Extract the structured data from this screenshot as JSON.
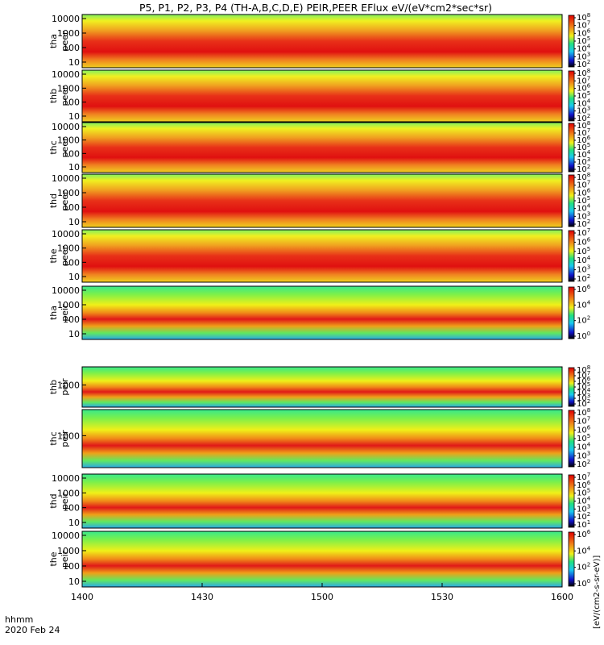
{
  "title": "P5, P1, P2, P3, P4 (TH-A,B,C,D,E) PEIR,PEER EFlux eV/(eV*cm2*sec*sr)",
  "time_axis": {
    "ticks": [
      "1400",
      "1430",
      "1500",
      "1530",
      "1600"
    ],
    "label_line1": "hhmm",
    "label_line2": "2020 Feb 24"
  },
  "colorbar_unit_label": "[eV/(cm2-s-sr-eV)]",
  "chart_data": [
    {
      "type": "heatmap",
      "panel": "thaeer",
      "ylabel": [
        "tha",
        "peer"
      ],
      "yscale": "log",
      "ytick_labels": [
        "10",
        "100",
        "1000",
        "10000"
      ],
      "cbar_tick_labels": [
        "10^2",
        "10^3",
        "10^4",
        "10^5",
        "10^6",
        "10^7",
        "10^8"
      ],
      "xrange": [
        "1400",
        "1600"
      ]
    },
    {
      "type": "heatmap",
      "panel": "thbeer",
      "ylabel": [
        "thb",
        "peer"
      ],
      "yscale": "log",
      "ytick_labels": [
        "10",
        "100",
        "1000",
        "10000"
      ],
      "cbar_tick_labels": [
        "10^2",
        "10^3",
        "10^4",
        "10^5",
        "10^6",
        "10^7",
        "10^8"
      ],
      "xrange": [
        "1400",
        "1600"
      ]
    },
    {
      "type": "heatmap",
      "panel": "thceer",
      "ylabel": [
        "thc",
        "peer"
      ],
      "yscale": "log",
      "ytick_labels": [
        "10",
        "100",
        "1000",
        "10000"
      ],
      "cbar_tick_labels": [
        "10^2",
        "10^3",
        "10^4",
        "10^5",
        "10^6",
        "10^7",
        "10^8"
      ],
      "xrange": [
        "1400",
        "1600"
      ]
    },
    {
      "type": "heatmap",
      "panel": "thdeer",
      "ylabel": [
        "thd",
        "peer"
      ],
      "yscale": "log",
      "ytick_labels": [
        "10",
        "100",
        "1000",
        "10000"
      ],
      "cbar_tick_labels": [
        "10^2",
        "10^3",
        "10^4",
        "10^5",
        "10^6",
        "10^7",
        "10^8"
      ],
      "xrange": [
        "1400",
        "1600"
      ]
    },
    {
      "type": "heatmap",
      "panel": "theeer",
      "ylabel": [
        "the",
        "peer"
      ],
      "yscale": "log",
      "ytick_labels": [
        "10",
        "100",
        "1000",
        "10000"
      ],
      "cbar_tick_labels": [
        "10^2",
        "10^3",
        "10^4",
        "10^5",
        "10^6",
        "10^7"
      ],
      "xrange": [
        "1400",
        "1600"
      ]
    },
    {
      "type": "heatmap",
      "panel": "thaeir",
      "ylabel": [
        "tha",
        "peir"
      ],
      "yscale": "log",
      "ytick_labels": [
        "10",
        "100",
        "1000",
        "10000"
      ],
      "cbar_tick_labels": [
        "10^0",
        "10^2",
        "10^4",
        "10^6"
      ],
      "xrange": [
        "1400",
        "1600"
      ]
    },
    {
      "type": "heatmap",
      "panel": "thbeir",
      "ylabel": [
        "thb",
        "peir"
      ],
      "yscale": "log",
      "ytick_labels": [
        "1000"
      ],
      "cbar_tick_labels": [
        "10^2",
        "10^3",
        "10^4",
        "10^5",
        "10^6",
        "10^7",
        "10^8"
      ],
      "xrange": [
        "1400",
        "1600"
      ]
    },
    {
      "type": "heatmap",
      "panel": "thceir",
      "ylabel": [
        "thc",
        "peir"
      ],
      "yscale": "log",
      "ytick_labels": [
        "1000"
      ],
      "cbar_tick_labels": [
        "10^2",
        "10^3",
        "10^4",
        "10^5",
        "10^6",
        "10^7",
        "10^8"
      ],
      "xrange": [
        "1400",
        "1600"
      ]
    },
    {
      "type": "heatmap",
      "panel": "thdeir",
      "ylabel": [
        "thd",
        "peir"
      ],
      "yscale": "log",
      "ytick_labels": [
        "10",
        "100",
        "1000",
        "10000"
      ],
      "cbar_tick_labels": [
        "10^1",
        "10^2",
        "10^3",
        "10^4",
        "10^5",
        "10^6",
        "10^7"
      ],
      "xrange": [
        "1400",
        "1600"
      ]
    },
    {
      "type": "heatmap",
      "panel": "theeir",
      "ylabel": [
        "the",
        "peir"
      ],
      "yscale": "log",
      "ytick_labels": [
        "10",
        "100",
        "1000",
        "10000"
      ],
      "cbar_tick_labels": [
        "10^0",
        "10^2",
        "10^4",
        "10^6"
      ],
      "xrange": [
        "1400",
        "1600"
      ]
    }
  ]
}
